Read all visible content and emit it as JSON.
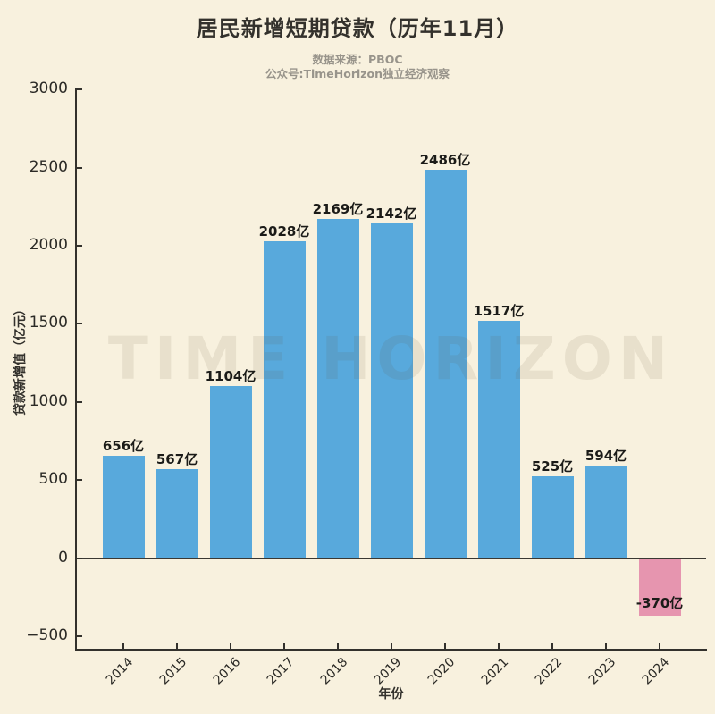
{
  "chart_data": {
    "type": "bar",
    "title": "居民新增短期贷款（历年11月）",
    "subtitle": [
      "数据来源：PBOC",
      "公众号:TimeHorizon独立经济观察"
    ],
    "watermark": "TIME HORIZON",
    "xlabel": "年份",
    "ylabel": "贷款新增值（亿元）",
    "categories": [
      "2014",
      "2015",
      "2016",
      "2017",
      "2018",
      "2019",
      "2020",
      "2021",
      "2022",
      "2023",
      "2024"
    ],
    "values": [
      656,
      567,
      1104,
      2028,
      2169,
      2142,
      2486,
      1517,
      525,
      594,
      -370
    ],
    "bar_labels": [
      "656亿",
      "567亿",
      "1104亿",
      "2028亿",
      "2169亿",
      "2142亿",
      "2486亿",
      "1517亿",
      "525亿",
      "594亿",
      "-370亿"
    ],
    "ytick_labels": [
      "3000",
      "2500",
      "2000",
      "1500",
      "1000",
      "500",
      "0",
      "−500"
    ],
    "ytick_values": [
      3000,
      2500,
      2000,
      1500,
      1000,
      500,
      0,
      -500
    ],
    "ylim": [
      -585,
      3030
    ],
    "grid": false,
    "legend": null,
    "colors": {
      "positive_bar": "#58A9DC",
      "negative_bar": "#E695AF",
      "background": "#F8F1DE",
      "axis": "#33312C",
      "subtitle_text": "#98948B"
    }
  }
}
